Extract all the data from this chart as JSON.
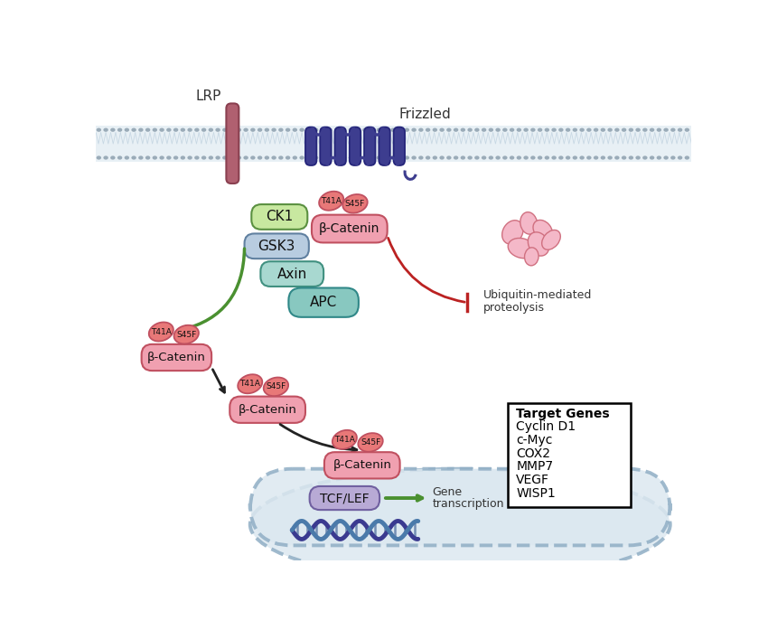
{
  "bg_color": "#ffffff",
  "membrane_dot_color": "#9aabb8",
  "membrane_fill": "#e8f0f5",
  "lrp_color": "#b06070",
  "lrp_edge": "#8a4050",
  "frizzled_color": "#3d3d8f",
  "frizzled_edge": "#25257a",
  "ck1_color": "#c8e8a0",
  "ck1_edge": "#5a9040",
  "gsk3_color": "#b8cce0",
  "gsk3_edge": "#6080a0",
  "axin_color": "#a8d8d0",
  "axin_edge": "#4090808",
  "apc_color": "#88c8c0",
  "apc_edge": "#308888",
  "beta_catenin_color": "#f0a0b0",
  "beta_catenin_edge": "#c05060",
  "mutation_color": "#e87878",
  "mutation_edge": "#c05060",
  "tcflef_color": "#b8aad5",
  "tcflef_edge": "#7060a0",
  "arrow_green": "#4a9030",
  "arrow_black": "#222222",
  "arrow_red": "#bb2222",
  "destroyed_color": "#f4b8c8",
  "destroyed_edge": "#d07080",
  "nucleus_fill": "#dce8f0",
  "nucleus_border": "#90aec5",
  "dna_color1": "#3a3a90",
  "dna_color2": "#4a7aaa",
  "dna_rung": "#5070a0",
  "target_genes": [
    "Target Genes",
    "Cyclin D1",
    "c-Myc",
    "COX2",
    "MMP7",
    "VEGF",
    "WISP1"
  ]
}
